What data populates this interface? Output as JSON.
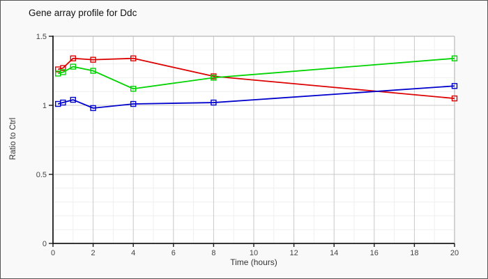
{
  "page": {
    "background": "#f9f9f9",
    "border_color": "#555555",
    "plot_background": "#ffffff"
  },
  "chart_data": {
    "type": "line",
    "title": "Gene array profile for Ddc",
    "xlabel": "Time (hours)",
    "ylabel": "Ratio to Ctrl",
    "xlim": [
      0,
      20
    ],
    "ylim": [
      0,
      1.5
    ],
    "x_ticks": [
      0,
      2,
      4,
      6,
      8,
      10,
      12,
      14,
      16,
      18,
      20
    ],
    "y_ticks": [
      0,
      0.5,
      1,
      1.5
    ],
    "y_tick_labels": [
      "0",
      "0.5",
      "1",
      "1.5"
    ],
    "x_minor_step": 1,
    "y_minor_step": 0.1,
    "grid": "on",
    "legend_position": "none",
    "marker": "open-square",
    "x": [
      0.25,
      0.5,
      1,
      2,
      4,
      8,
      20
    ],
    "series": [
      {
        "name": "red-series",
        "color": "#dd0000",
        "values": [
          1.26,
          1.27,
          1.34,
          1.33,
          1.34,
          1.21,
          1.05
        ]
      },
      {
        "name": "green-series",
        "color": "#00d400",
        "values": [
          1.23,
          1.24,
          1.28,
          1.25,
          1.12,
          1.2,
          1.34
        ]
      },
      {
        "name": "blue-series",
        "color": "#0000cd",
        "values": [
          1.01,
          1.02,
          1.04,
          0.98,
          1.01,
          1.02,
          1.14
        ]
      }
    ],
    "grid_major_color": "#c8c8c8",
    "grid_minor_color": "#efefef",
    "plot_border_color": "#b8b8b8",
    "axis_color": "#1a1a1a"
  }
}
